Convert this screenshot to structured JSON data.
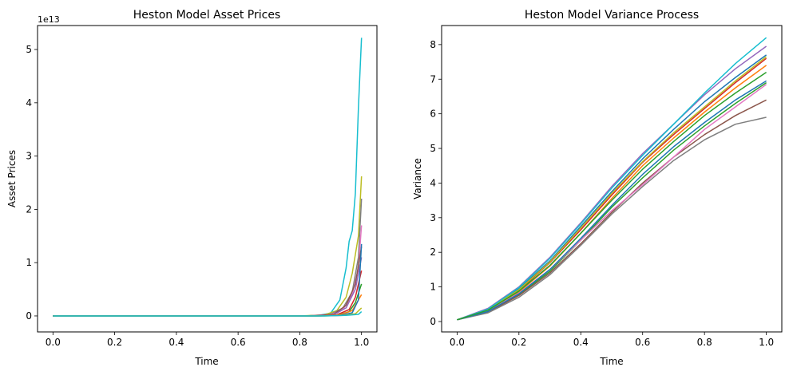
{
  "chart_data": [
    {
      "type": "line",
      "title": "Heston Model Asset Prices",
      "xlabel": "Time",
      "ylabel": "Asset Prices",
      "offset_label": "1e13",
      "xlim": [
        -0.05,
        1.05
      ],
      "ylim": [
        -0.3,
        5.45
      ],
      "xticks": [
        0.0,
        0.2,
        0.4,
        0.6,
        0.8,
        1.0
      ],
      "xtick_labels": [
        "0.0",
        "0.2",
        "0.4",
        "0.6",
        "0.8",
        "1.0"
      ],
      "yticks": [
        0,
        1,
        2,
        3,
        4,
        5
      ],
      "ytick_labels": [
        "0",
        "1",
        "2",
        "3",
        "4",
        "5"
      ],
      "y_unit_scale": "1e13",
      "grid": false,
      "legend": "none",
      "series": [
        {
          "color": "#17becf",
          "x": [
            0.0,
            0.8,
            0.86,
            0.9,
            0.93,
            0.95,
            0.96,
            0.97,
            0.98,
            0.99,
            1.0
          ],
          "values": [
            0,
            0,
            0.01,
            0.05,
            0.3,
            0.9,
            1.4,
            1.6,
            2.3,
            3.9,
            5.22
          ]
        },
        {
          "color": "#bcbd22",
          "x": [
            0.0,
            0.8,
            0.88,
            0.92,
            0.95,
            0.97,
            0.99,
            1.0
          ],
          "values": [
            0,
            0,
            0.02,
            0.1,
            0.35,
            0.8,
            1.5,
            2.62
          ]
        },
        {
          "color": "#7f7f7f",
          "x": [
            0.0,
            0.82,
            0.9,
            0.94,
            0.97,
            0.99,
            1.0
          ],
          "values": [
            0,
            0,
            0.03,
            0.15,
            0.45,
            1.1,
            2.2
          ]
        },
        {
          "color": "#e377c2",
          "x": [
            0.0,
            0.82,
            0.9,
            0.94,
            0.97,
            0.99,
            1.0
          ],
          "values": [
            0,
            0,
            0.02,
            0.12,
            0.4,
            0.9,
            1.7
          ]
        },
        {
          "color": "#8c564b",
          "x": [
            0.0,
            0.84,
            0.91,
            0.95,
            0.98,
            1.0
          ],
          "values": [
            0,
            0,
            0.03,
            0.2,
            0.6,
            1.3
          ]
        },
        {
          "color": "#9467bd",
          "x": [
            0.0,
            0.84,
            0.91,
            0.95,
            0.98,
            1.0
          ],
          "values": [
            0,
            0,
            0.02,
            0.15,
            0.5,
            1.1
          ]
        },
        {
          "color": "#d62728",
          "x": [
            0.0,
            0.85,
            0.92,
            0.96,
            0.98,
            1.0
          ],
          "values": [
            0,
            0,
            0.02,
            0.12,
            0.35,
            0.85
          ]
        },
        {
          "color": "#2ca02c",
          "x": [
            0.0,
            0.85,
            0.92,
            0.96,
            0.98,
            1.0
          ],
          "values": [
            0,
            0,
            0.01,
            0.08,
            0.25,
            0.6
          ]
        },
        {
          "color": "#ff7f0e",
          "x": [
            0.0,
            0.86,
            0.93,
            0.97,
            1.0
          ],
          "values": [
            0,
            0,
            0.02,
            0.1,
            0.4
          ]
        },
        {
          "color": "#1f77b4",
          "x": [
            0.0,
            0.86,
            0.93,
            0.97,
            0.99,
            1.0
          ],
          "values": [
            0,
            0,
            0.01,
            0.06,
            0.3,
            1.35
          ]
        },
        {
          "color": "#bcbd22",
          "x": [
            0.0,
            0.88,
            0.94,
            0.98,
            1.0
          ],
          "values": [
            0,
            0,
            0.01,
            0.04,
            0.15
          ]
        },
        {
          "color": "#17becf",
          "x": [
            0.0,
            0.88,
            0.95,
            0.99,
            1.0
          ],
          "values": [
            0,
            0,
            0.01,
            0.03,
            0.08
          ]
        }
      ]
    },
    {
      "type": "line",
      "title": "Heston Model Variance Process",
      "xlabel": "Time",
      "ylabel": "Variance",
      "xlim": [
        -0.05,
        1.05
      ],
      "ylim": [
        -0.3,
        8.55
      ],
      "xticks": [
        0.0,
        0.2,
        0.4,
        0.6,
        0.8,
        1.0
      ],
      "xtick_labels": [
        "0.0",
        "0.2",
        "0.4",
        "0.6",
        "0.8",
        "1.0"
      ],
      "yticks": [
        0,
        1,
        2,
        3,
        4,
        5,
        6,
        7,
        8
      ],
      "ytick_labels": [
        "0",
        "1",
        "2",
        "3",
        "4",
        "5",
        "6",
        "7",
        "8"
      ],
      "grid": false,
      "legend": "none",
      "series": [
        {
          "color": "#1f77b4",
          "x": [
            0.0,
            0.1,
            0.2,
            0.3,
            0.4,
            0.5,
            0.6,
            0.7,
            0.8,
            0.9,
            1.0
          ],
          "values": [
            0.05,
            0.35,
            0.95,
            1.75,
            2.75,
            3.75,
            4.7,
            5.55,
            6.35,
            7.05,
            7.7
          ]
        },
        {
          "color": "#ff7f0e",
          "x": [
            0.0,
            0.1,
            0.2,
            0.3,
            0.4,
            0.5,
            0.6,
            0.7,
            0.8,
            0.9,
            1.0
          ],
          "values": [
            0.05,
            0.3,
            0.85,
            1.6,
            2.55,
            3.55,
            4.5,
            5.3,
            6.05,
            6.75,
            7.4
          ]
        },
        {
          "color": "#2ca02c",
          "x": [
            0.0,
            0.1,
            0.2,
            0.3,
            0.4,
            0.5,
            0.6,
            0.7,
            0.8,
            0.9,
            1.0
          ],
          "values": [
            0.05,
            0.28,
            0.78,
            1.45,
            2.35,
            3.3,
            4.15,
            4.95,
            5.65,
            6.3,
            6.9
          ]
        },
        {
          "color": "#d62728",
          "x": [
            0.0,
            0.1,
            0.2,
            0.3,
            0.4,
            0.5,
            0.6,
            0.7,
            0.8,
            0.9,
            1.0
          ],
          "values": [
            0.05,
            0.32,
            0.9,
            1.7,
            2.65,
            3.65,
            4.6,
            5.4,
            6.15,
            6.9,
            7.6
          ]
        },
        {
          "color": "#9467bd",
          "x": [
            0.0,
            0.1,
            0.2,
            0.3,
            0.4,
            0.5,
            0.6,
            0.7,
            0.8,
            0.9,
            1.0
          ],
          "values": [
            0.05,
            0.38,
            1.0,
            1.85,
            2.85,
            3.9,
            4.85,
            5.7,
            6.55,
            7.3,
            7.95
          ]
        },
        {
          "color": "#8c564b",
          "x": [
            0.0,
            0.1,
            0.2,
            0.3,
            0.4,
            0.5,
            0.6,
            0.7,
            0.8,
            0.9,
            1.0
          ],
          "values": [
            0.05,
            0.27,
            0.75,
            1.4,
            2.25,
            3.15,
            4.0,
            4.75,
            5.4,
            5.95,
            6.4
          ]
        },
        {
          "color": "#e377c2",
          "x": [
            0.0,
            0.1,
            0.2,
            0.3,
            0.4,
            0.5,
            0.6,
            0.7,
            0.8,
            0.9,
            1.0
          ],
          "values": [
            0.05,
            0.3,
            0.82,
            1.5,
            2.35,
            3.2,
            3.95,
            4.75,
            5.55,
            6.2,
            6.85
          ]
        },
        {
          "color": "#7f7f7f",
          "x": [
            0.0,
            0.1,
            0.2,
            0.3,
            0.4,
            0.5,
            0.6,
            0.7,
            0.8,
            0.9,
            1.0
          ],
          "values": [
            0.05,
            0.25,
            0.7,
            1.35,
            2.2,
            3.1,
            3.9,
            4.65,
            5.25,
            5.7,
            5.9
          ]
        },
        {
          "color": "#bcbd22",
          "x": [
            0.0,
            0.1,
            0.2,
            0.3,
            0.4,
            0.5,
            0.6,
            0.7,
            0.8,
            0.9,
            1.0
          ],
          "values": [
            0.05,
            0.34,
            0.92,
            1.72,
            2.7,
            3.7,
            4.62,
            5.45,
            6.2,
            6.95,
            7.65
          ]
        },
        {
          "color": "#17becf",
          "x": [
            0.0,
            0.1,
            0.2,
            0.3,
            0.4,
            0.5,
            0.6,
            0.7,
            0.8,
            0.9,
            1.0
          ],
          "values": [
            0.05,
            0.36,
            0.98,
            1.82,
            2.82,
            3.85,
            4.8,
            5.7,
            6.6,
            7.45,
            8.2
          ]
        },
        {
          "color": "#1f77b4",
          "x": [
            0.0,
            0.1,
            0.2,
            0.3,
            0.4,
            0.5,
            0.6,
            0.7,
            0.8,
            0.9,
            1.0
          ],
          "values": [
            0.05,
            0.29,
            0.8,
            1.5,
            2.4,
            3.35,
            4.25,
            5.05,
            5.75,
            6.4,
            6.95
          ]
        },
        {
          "color": "#2ca02c",
          "x": [
            0.0,
            0.1,
            0.2,
            0.3,
            0.4,
            0.5,
            0.6,
            0.7,
            0.8,
            0.9,
            1.0
          ],
          "values": [
            0.05,
            0.33,
            0.88,
            1.62,
            2.55,
            3.5,
            4.4,
            5.2,
            5.95,
            6.6,
            7.2
          ]
        }
      ]
    }
  ]
}
